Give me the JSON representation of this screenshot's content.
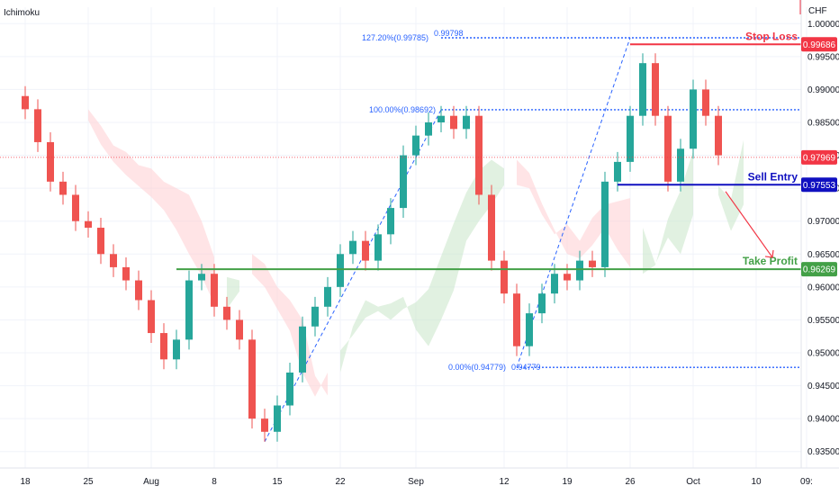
{
  "header": {
    "indicator": "Ichimoku",
    "currency": "CHF"
  },
  "colors": {
    "up": "#26a69a",
    "down": "#ef5350",
    "fib": "#2962ff",
    "stop": "#f23645",
    "entry": "#1010c0",
    "tp": "#43a047",
    "cloud_green": "#c8e6c9",
    "cloud_red": "#ffcdd2",
    "last_price": "#f23645"
  },
  "chart_data": {
    "type": "candlestick",
    "ylim": [
      0.9325,
      1.0025
    ],
    "y_ticks": [
      "0.93500",
      "0.94000",
      "0.94500",
      "0.95000",
      "0.95500",
      "0.96000",
      "0.96500",
      "0.97000",
      "0.97500",
      "0.98000",
      "0.98500",
      "0.99000",
      "0.99500",
      "1.00000"
    ],
    "x_ticks": [
      {
        "label": "18",
        "bar": 0
      },
      {
        "label": "25",
        "bar": 5
      },
      {
        "label": "Aug",
        "bar": 10
      },
      {
        "label": "8",
        "bar": 15
      },
      {
        "label": "15",
        "bar": 20
      },
      {
        "label": "22",
        "bar": 25
      },
      {
        "label": "Sep",
        "bar": 31
      },
      {
        "label": "12",
        "bar": 38
      },
      {
        "label": "19",
        "bar": 43
      },
      {
        "label": "26",
        "bar": 48
      },
      {
        "label": "Oct",
        "bar": 53
      },
      {
        "label": "10",
        "bar": 58
      },
      {
        "label": "09:",
        "bar": 62
      }
    ],
    "closes": [
      0.987,
      0.982,
      0.976,
      0.974,
      0.97,
      0.969,
      0.965,
      0.963,
      0.961,
      0.958,
      0.953,
      0.949,
      0.952,
      0.961,
      0.962,
      0.957,
      0.955,
      0.952,
      0.94,
      0.938,
      0.942,
      0.947,
      0.954,
      0.957,
      0.96,
      0.965,
      0.967,
      0.964,
      0.968,
      0.972,
      0.98,
      0.983,
      0.985,
      0.986,
      0.984,
      0.986,
      0.974,
      0.964,
      0.959,
      0.951,
      0.956,
      0.959,
      0.962,
      0.961,
      0.964,
      0.963,
      0.976,
      0.979,
      0.986,
      0.994,
      0.986,
      0.976,
      0.981,
      0.99,
      0.986,
      0.98
    ],
    "fib_levels": [
      {
        "label": "127.20%(0.99785)",
        "value": 0.99785
      },
      {
        "label": "0.99798",
        "value": 0.99798
      },
      {
        "label": "100.00%(0.98692)",
        "value": 0.98692
      },
      {
        "label": "0.00%(0.94779)",
        "value": 0.94779
      },
      {
        "label": "0.94779",
        "value": 0.94779
      }
    ],
    "levels": [
      {
        "name": "Stop Loss",
        "value": 0.99686,
        "tag": "0.99686"
      },
      {
        "name": "Sell Entry",
        "value": 0.97553,
        "tag": "0.97553"
      },
      {
        "name": "Take Profit",
        "value": 0.96269,
        "tag": "0.96269"
      }
    ],
    "last_price": {
      "value": 0.97969,
      "tag": "0.97969"
    }
  }
}
